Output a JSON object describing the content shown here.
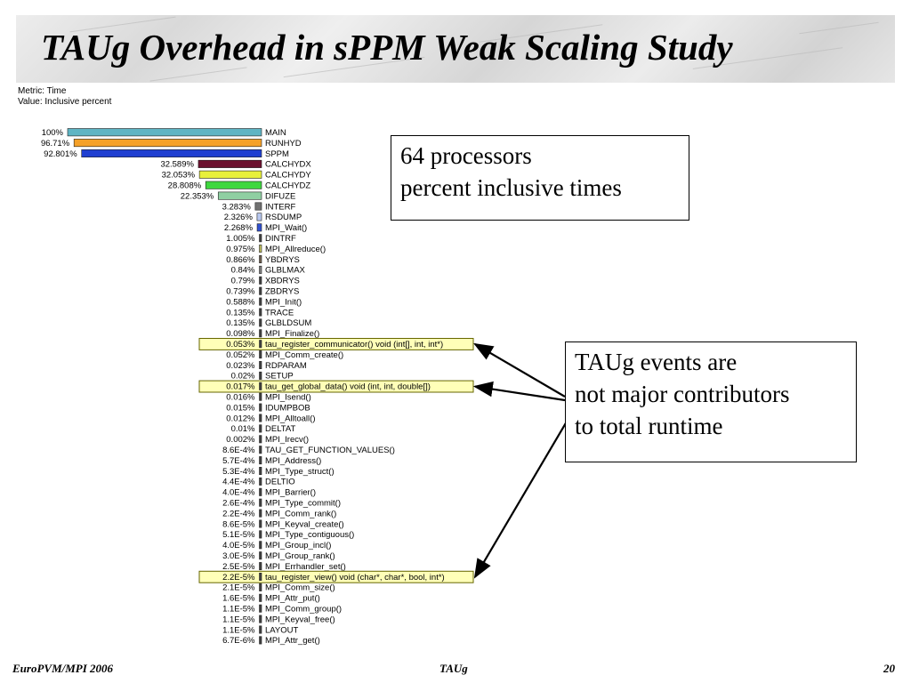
{
  "slide": {
    "title": "TAUg Overhead in sPPM Weak Scaling Study",
    "footer_left": "EuroPVM/MPI 2006",
    "footer_center": "TAUg",
    "footer_right": "20"
  },
  "metric_label": "Metric: Time",
  "value_label": "Value: Inclusive percent",
  "callout_top": [
    "64 processors",
    "percent inclusive times"
  ],
  "callout_right": [
    "TAUg events are",
    "not major contributors",
    "to total runtime"
  ],
  "chart_data": {
    "type": "bar",
    "orientation": "horizontal",
    "metric": "Time",
    "value_type": "Inclusive percent",
    "xlim": [
      0,
      100
    ],
    "bars": [
      {
        "name": "MAIN",
        "label": "100%",
        "value": 100,
        "color": "#5fb5c4"
      },
      {
        "name": "RUNHYD",
        "label": "96.71%",
        "value": 96.71,
        "color": "#f5a128"
      },
      {
        "name": "SPPM",
        "label": "92.801%",
        "value": 92.801,
        "color": "#1f3fd1"
      },
      {
        "name": "CALCHYDX",
        "label": "32.589%",
        "value": 32.589,
        "color": "#6b0f2e"
      },
      {
        "name": "CALCHYDY",
        "label": "32.053%",
        "value": 32.053,
        "color": "#e8f03a"
      },
      {
        "name": "CALCHYDZ",
        "label": "28.808%",
        "value": 28.808,
        "color": "#3fd73f"
      },
      {
        "name": "DIFUZE",
        "label": "22.353%",
        "value": 22.353,
        "color": "#8fcfa2"
      },
      {
        "name": "INTERF",
        "label": "3.283%",
        "value": 3.283,
        "color": "#707070"
      },
      {
        "name": "RSDUMP",
        "label": "2.326%",
        "value": 2.326,
        "color": "#b8c8f0"
      },
      {
        "name": "MPI_Wait()",
        "label": "2.268%",
        "value": 2.268,
        "color": "#3050d0"
      },
      {
        "name": "DINTRF",
        "label": "1.005%",
        "value": 1.005,
        "color": "#404040"
      },
      {
        "name": "MPI_Allreduce()",
        "label": "0.975%",
        "value": 0.975,
        "color": "#c0c060"
      },
      {
        "name": "YBDRYS",
        "label": "0.866%",
        "value": 0.866,
        "color": "#706050"
      },
      {
        "name": "GLBLMAX",
        "label": "0.84%",
        "value": 0.84,
        "color": "#808080"
      },
      {
        "name": "XBDRYS",
        "label": "0.79%",
        "value": 0.79,
        "color": "#404040"
      },
      {
        "name": "ZBDRYS",
        "label": "0.739%",
        "value": 0.739,
        "color": "#404040"
      },
      {
        "name": "MPI_Init()",
        "label": "0.588%",
        "value": 0.588,
        "color": "#404040"
      },
      {
        "name": "TRACE",
        "label": "0.135%",
        "value": 0.135,
        "color": "#404040"
      },
      {
        "name": "GLBLDSUM",
        "label": "0.135%",
        "value": 0.135,
        "color": "#404040"
      },
      {
        "name": "MPI_Finalize()",
        "label": "0.098%",
        "value": 0.098,
        "color": "#404040"
      },
      {
        "name": "tau_register_communicator() void (int[], int, int*)",
        "label": "0.053%",
        "value": 0.053,
        "color": "#404040",
        "highlight": true
      },
      {
        "name": "MPI_Comm_create()",
        "label": "0.052%",
        "value": 0.052,
        "color": "#404040"
      },
      {
        "name": "RDPARAM",
        "label": "0.023%",
        "value": 0.023,
        "color": "#404040"
      },
      {
        "name": "SETUP",
        "label": "0.02%",
        "value": 0.02,
        "color": "#404040"
      },
      {
        "name": "tau_get_global_data() void (int, int, double[])",
        "label": "0.017%",
        "value": 0.017,
        "color": "#404040",
        "highlight": true
      },
      {
        "name": "MPI_Isend()",
        "label": "0.016%",
        "value": 0.016,
        "color": "#404040"
      },
      {
        "name": "IDUMPBOB",
        "label": "0.015%",
        "value": 0.015,
        "color": "#404040"
      },
      {
        "name": "MPI_Alltoall()",
        "label": "0.012%",
        "value": 0.012,
        "color": "#404040"
      },
      {
        "name": "DELTAT",
        "label": "0.01%",
        "value": 0.01,
        "color": "#404040"
      },
      {
        "name": "MPI_Irecv()",
        "label": "0.002%",
        "value": 0.002,
        "color": "#404040"
      },
      {
        "name": "TAU_GET_FUNCTION_VALUES()",
        "label": "8.6E-4%",
        "value": 0.00086,
        "color": "#404040"
      },
      {
        "name": "MPI_Address()",
        "label": "5.7E-4%",
        "value": 0.00057,
        "color": "#404040"
      },
      {
        "name": "MPI_Type_struct()",
        "label": "5.3E-4%",
        "value": 0.00053,
        "color": "#404040"
      },
      {
        "name": "DELTIO",
        "label": "4.4E-4%",
        "value": 0.00044,
        "color": "#404040"
      },
      {
        "name": "MPI_Barrier()",
        "label": "4.0E-4%",
        "value": 0.0004,
        "color": "#404040"
      },
      {
        "name": "MPI_Type_commit()",
        "label": "2.6E-4%",
        "value": 0.00026,
        "color": "#404040"
      },
      {
        "name": "MPI_Comm_rank()",
        "label": "2.2E-4%",
        "value": 0.00022,
        "color": "#404040"
      },
      {
        "name": "MPI_Keyval_create()",
        "label": "8.6E-5%",
        "value": 8.6e-05,
        "color": "#404040"
      },
      {
        "name": "MPI_Type_contiguous()",
        "label": "5.1E-5%",
        "value": 5.1e-05,
        "color": "#404040"
      },
      {
        "name": "MPI_Group_incl()",
        "label": "4.0E-5%",
        "value": 4e-05,
        "color": "#404040"
      },
      {
        "name": "MPI_Group_rank()",
        "label": "3.0E-5%",
        "value": 3e-05,
        "color": "#404040"
      },
      {
        "name": "MPI_Errhandler_set()",
        "label": "2.5E-5%",
        "value": 2.5e-05,
        "color": "#404040"
      },
      {
        "name": "tau_register_view() void (char*, char*, bool, int*)",
        "label": "2.2E-5%",
        "value": 2.2e-05,
        "color": "#404040",
        "highlight": true
      },
      {
        "name": "MPI_Comm_size()",
        "label": "2.1E-5%",
        "value": 2.1e-05,
        "color": "#404040"
      },
      {
        "name": "MPI_Attr_put()",
        "label": "1.6E-5%",
        "value": 1.6e-05,
        "color": "#404040"
      },
      {
        "name": "MPI_Comm_group()",
        "label": "1.1E-5%",
        "value": 1.1e-05,
        "color": "#404040"
      },
      {
        "name": "MPI_Keyval_free()",
        "label": "1.1E-5%",
        "value": 1.1e-05,
        "color": "#404040"
      },
      {
        "name": "LAYOUT",
        "label": "1.1E-5%",
        "value": 1.1e-05,
        "color": "#404040"
      },
      {
        "name": "MPI_Attr_get()",
        "label": "6.7E-6%",
        "value": 6.7e-06,
        "color": "#404040"
      }
    ]
  }
}
